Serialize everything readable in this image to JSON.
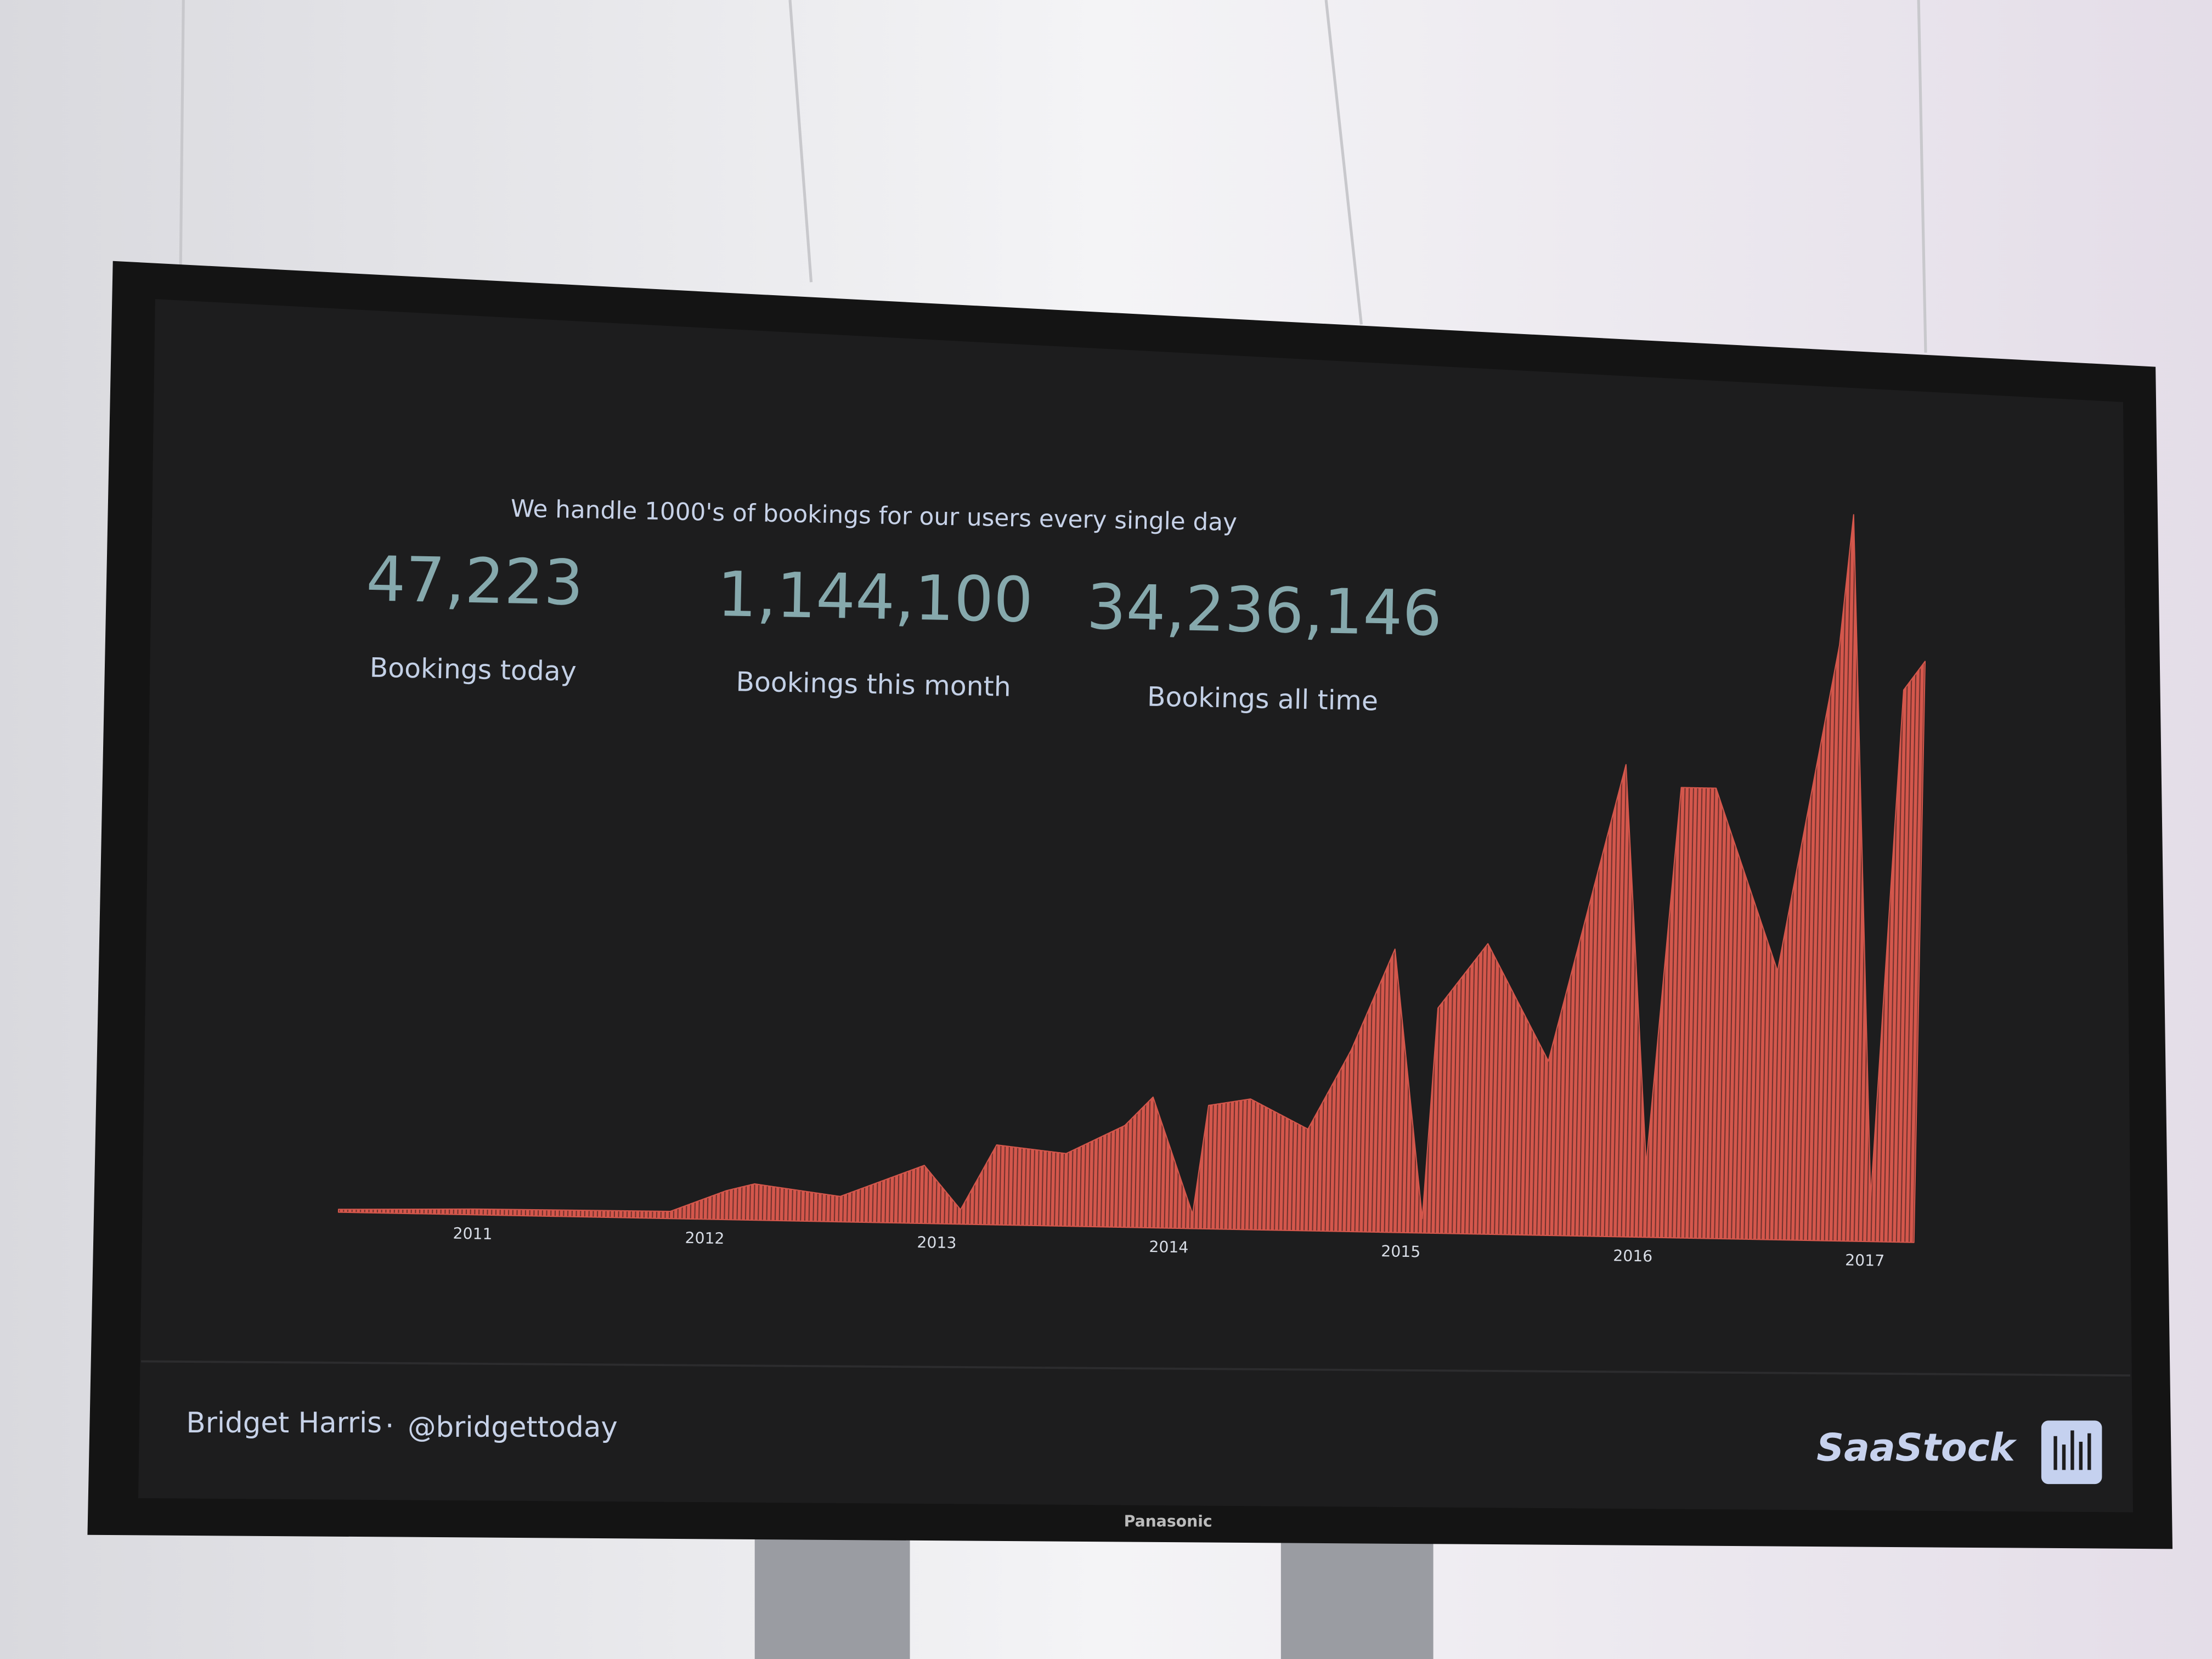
{
  "slide": {
    "subtitle": "We handle 1000's of bookings for our users every single day",
    "stats": [
      {
        "value": "47,223",
        "label": "Bookings today"
      },
      {
        "value": "1,144,100",
        "label": "Bookings this month"
      },
      {
        "value": "34,236,146",
        "label": "Bookings all time"
      }
    ],
    "footer": {
      "name": "Bridget Harris",
      "separator": "·",
      "handle": "@bridgettoday",
      "brand": "SaaStock"
    },
    "monitor_brand": "Panasonic"
  },
  "chart_data": {
    "type": "area",
    "x": [
      2010.42,
      2011.0,
      2011.85,
      2012.09,
      2012.21,
      2012.58,
      2012.94,
      2013.1,
      2013.25,
      2013.55,
      2013.8,
      2013.92,
      2014.1,
      2014.16,
      2014.34,
      2014.59,
      2014.77,
      2014.95,
      2015.09,
      2015.14,
      2015.35,
      2015.62,
      2015.93,
      2016.05,
      2016.17,
      2016.32,
      2016.6,
      2016.84,
      2016.89,
      2017.02,
      2017.12,
      2017.21
    ],
    "values": [
      0.4,
      0.8,
      1,
      4,
      5,
      3.5,
      8,
      2,
      11,
      10,
      14,
      18,
      2,
      17,
      18,
      14,
      25,
      39,
      2,
      31,
      40,
      24,
      65,
      10,
      62,
      62,
      37,
      82,
      100,
      6,
      76,
      80
    ],
    "color": "#d4574c",
    "xlim": [
      2010.42,
      2017.21
    ],
    "xticks": [
      2011,
      2012,
      2013,
      2014,
      2015,
      2016,
      2017
    ],
    "ylim": [
      0,
      100
    ]
  }
}
